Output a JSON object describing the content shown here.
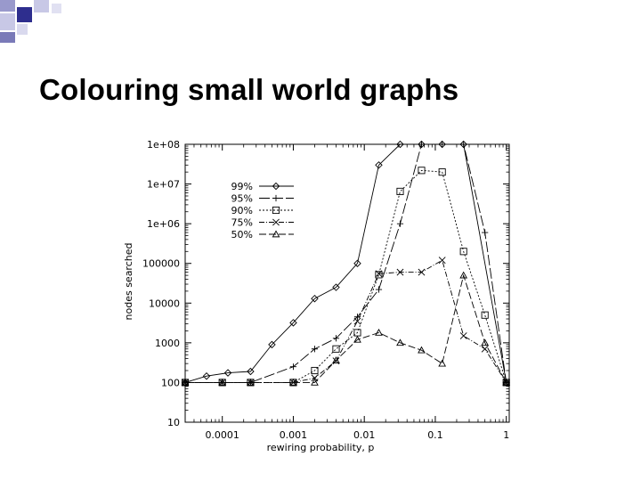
{
  "slide": {
    "title": "Colouring small world graphs"
  },
  "chart_data": {
    "type": "line",
    "xscale": "log",
    "yscale": "log",
    "xlim": [
      3e-05,
      1.1
    ],
    "ylim": [
      10,
      100000000
    ],
    "xlabel": "rewiring probability, p",
    "ylabel": "nodes searched",
    "grid": false,
    "legend_position": "top-left",
    "x_ticks": [
      {
        "value": 0.0001,
        "label": "0.0001"
      },
      {
        "value": 0.001,
        "label": "0.001"
      },
      {
        "value": 0.01,
        "label": "0.01"
      },
      {
        "value": 0.1,
        "label": "0.1"
      },
      {
        "value": 1,
        "label": "1"
      }
    ],
    "y_ticks": [
      {
        "value": 10,
        "label": "10"
      },
      {
        "value": 100,
        "label": "100"
      },
      {
        "value": 1000,
        "label": "1000"
      },
      {
        "value": 10000,
        "label": "10000"
      },
      {
        "value": 100000,
        "label": "100000"
      },
      {
        "value": 1000000,
        "label": "1e+06"
      },
      {
        "value": 10000000,
        "label": "1e+07"
      },
      {
        "value": 100000000,
        "label": "1e+08"
      }
    ],
    "series": [
      {
        "name": "99%",
        "marker": "diamond",
        "dash": "none",
        "points": [
          [
            3e-05,
            100
          ],
          [
            6e-05,
            145
          ],
          [
            0.00012,
            175
          ],
          [
            0.00025,
            190
          ],
          [
            0.0005,
            900
          ],
          [
            0.001,
            3200
          ],
          [
            0.002,
            13000
          ],
          [
            0.004,
            25000
          ],
          [
            0.008,
            100000
          ],
          [
            0.016,
            30000000
          ],
          [
            0.032,
            100000000
          ],
          [
            0.064,
            100000000
          ],
          [
            0.125,
            100000000
          ],
          [
            0.25,
            100000000
          ],
          [
            1,
            100
          ]
        ]
      },
      {
        "name": "95%",
        "marker": "plus",
        "dash": "solid-long",
        "points": [
          [
            3e-05,
            100
          ],
          [
            0.0001,
            100
          ],
          [
            0.00025,
            100
          ],
          [
            0.001,
            250
          ],
          [
            0.002,
            700
          ],
          [
            0.004,
            1300
          ],
          [
            0.008,
            4500
          ],
          [
            0.016,
            22000
          ],
          [
            0.032,
            1000000
          ],
          [
            0.064,
            100000000
          ],
          [
            0.125,
            100000000
          ],
          [
            0.25,
            100000000
          ],
          [
            0.5,
            600000
          ],
          [
            1,
            100
          ]
        ]
      },
      {
        "name": "90%",
        "marker": "square",
        "dash": "short",
        "points": [
          [
            3e-05,
            100
          ],
          [
            0.0001,
            100
          ],
          [
            0.00025,
            100
          ],
          [
            0.001,
            100
          ],
          [
            0.002,
            200
          ],
          [
            0.004,
            700
          ],
          [
            0.008,
            1800
          ],
          [
            0.016,
            52000
          ],
          [
            0.032,
            6500000
          ],
          [
            0.064,
            22000000
          ],
          [
            0.125,
            20000000
          ],
          [
            0.25,
            200000
          ],
          [
            0.5,
            5000
          ],
          [
            1,
            100
          ]
        ]
      },
      {
        "name": "75%",
        "marker": "cross",
        "dash": "dashdot",
        "points": [
          [
            3e-05,
            100
          ],
          [
            0.0001,
            100
          ],
          [
            0.00025,
            100
          ],
          [
            0.001,
            100
          ],
          [
            0.002,
            130
          ],
          [
            0.004,
            350
          ],
          [
            0.008,
            3500
          ],
          [
            0.016,
            55000
          ],
          [
            0.032,
            60000
          ],
          [
            0.064,
            60000
          ],
          [
            0.125,
            120000
          ],
          [
            0.25,
            1500
          ],
          [
            0.5,
            700
          ],
          [
            1,
            100
          ]
        ]
      },
      {
        "name": "50%",
        "marker": "triangle",
        "dash": "dash",
        "points": [
          [
            3e-05,
            100
          ],
          [
            0.0001,
            100
          ],
          [
            0.00025,
            100
          ],
          [
            0.001,
            100
          ],
          [
            0.002,
            100
          ],
          [
            0.004,
            360
          ],
          [
            0.008,
            1200
          ],
          [
            0.016,
            1800
          ],
          [
            0.032,
            1000
          ],
          [
            0.064,
            650
          ],
          [
            0.125,
            300
          ],
          [
            0.25,
            50000
          ],
          [
            0.5,
            1000
          ],
          [
            1,
            100
          ]
        ]
      }
    ]
  }
}
